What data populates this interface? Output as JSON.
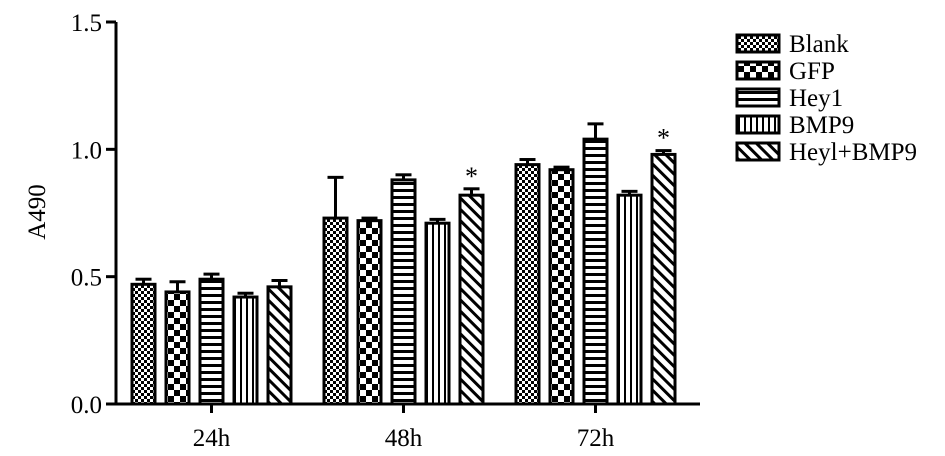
{
  "chart_data": {
    "type": "bar",
    "title": "",
    "xlabel": "",
    "ylabel": "A490",
    "ylim": [
      0,
      1.5
    ],
    "yticks": [
      "0.0",
      "0.5",
      "1.0",
      "1.5"
    ],
    "categories": [
      "24h",
      "48h",
      "72h"
    ],
    "legend_position": "right",
    "series": [
      {
        "name": "Blank",
        "pattern": "checker",
        "values": [
          0.47,
          0.73,
          0.94
        ],
        "errors": [
          0.02,
          0.16,
          0.02
        ]
      },
      {
        "name": "GFP",
        "pattern": "bigchecker",
        "values": [
          0.44,
          0.72,
          0.92
        ],
        "errors": [
          0.04,
          0.01,
          0.01
        ]
      },
      {
        "name": "Hey1",
        "pattern": "hlines",
        "values": [
          0.49,
          0.88,
          1.04
        ],
        "errors": [
          0.02,
          0.02,
          0.06
        ]
      },
      {
        "name": "BMP9",
        "pattern": "vlines",
        "values": [
          0.42,
          0.71,
          0.82
        ],
        "errors": [
          0.015,
          0.015,
          0.015
        ]
      },
      {
        "name": "Heyl+BMP9",
        "pattern": "diag",
        "values": [
          0.46,
          0.82,
          0.98
        ],
        "errors": [
          0.025,
          0.025,
          0.015
        ]
      }
    ],
    "annotations": [
      {
        "text": "*",
        "category": "48h",
        "series": "Heyl+BMP9"
      },
      {
        "text": "*",
        "category": "72h",
        "series": "Heyl+BMP9"
      }
    ]
  },
  "colors": {
    "bar_stroke": "#000000",
    "bar_fill": "#ffffff",
    "pattern": "#000000"
  }
}
